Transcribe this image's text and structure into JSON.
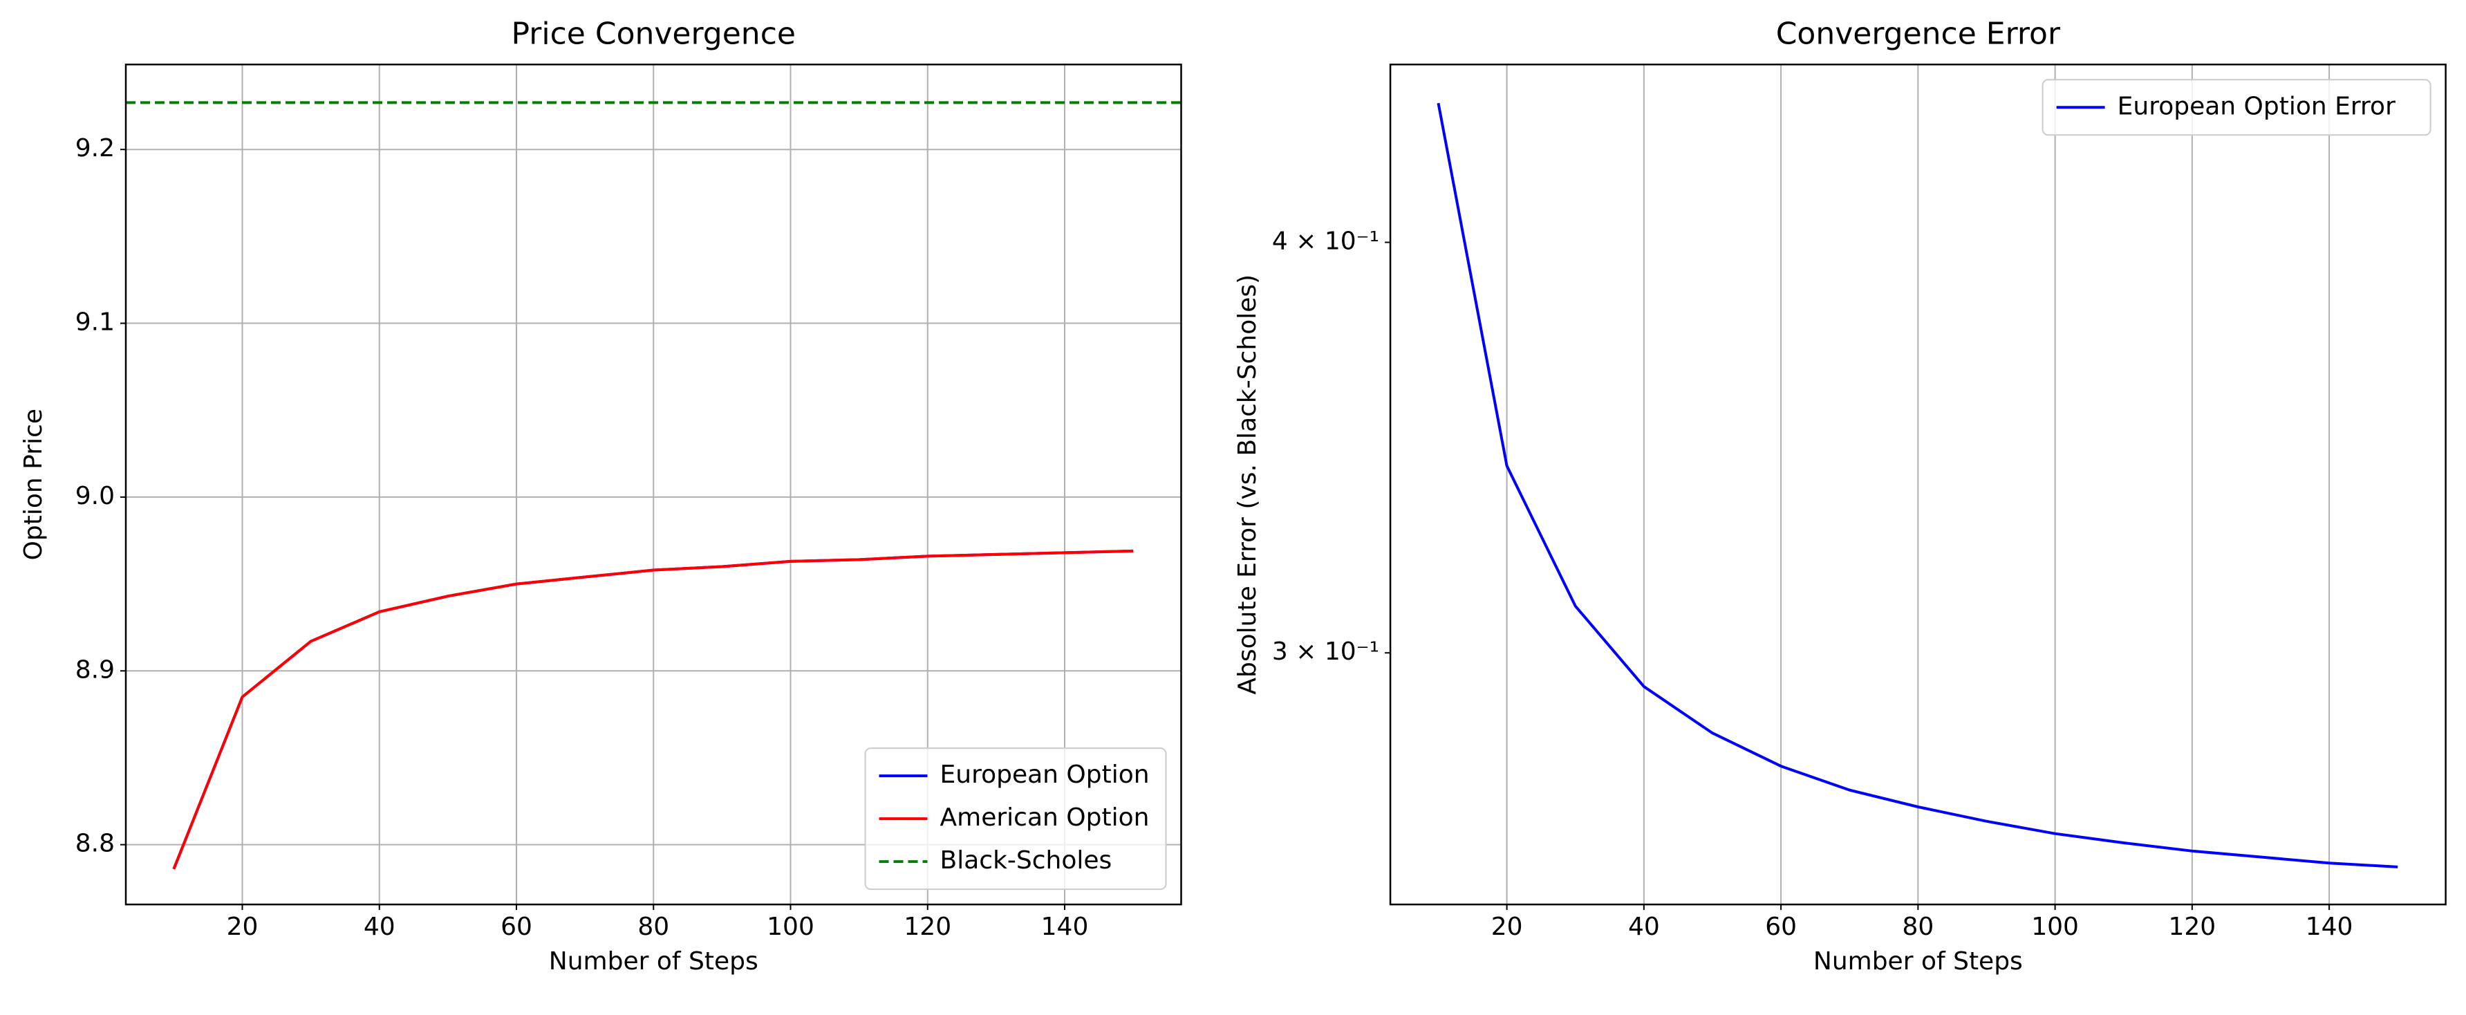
{
  "chart_data": [
    {
      "type": "line",
      "title": "Price Convergence",
      "xlabel": "Number of Steps",
      "ylabel": "Option Price",
      "x": [
        10,
        20,
        30,
        40,
        50,
        60,
        70,
        80,
        90,
        100,
        110,
        120,
        130,
        140,
        150
      ],
      "series": [
        {
          "name": "European Option",
          "color": "#0000ff",
          "values": [
            8.786,
            8.885,
            8.917,
            8.934,
            8.943,
            8.95,
            8.954,
            8.958,
            8.96,
            8.963,
            8.964,
            8.966,
            8.967,
            8.968,
            8.969
          ]
        },
        {
          "name": "American Option",
          "color": "#ff0000",
          "values": [
            8.786,
            8.885,
            8.917,
            8.934,
            8.943,
            8.95,
            8.954,
            8.958,
            8.96,
            8.963,
            8.964,
            8.966,
            8.967,
            8.968,
            8.969
          ]
        },
        {
          "name": "Black-Scholes",
          "color": "#008000",
          "linestyle": "dashed",
          "hline": 9.227
        }
      ],
      "xlim": [
        3,
        157
      ],
      "xticks": [
        20,
        40,
        60,
        80,
        100,
        120,
        140
      ],
      "ylim": [
        8.7656,
        9.2489
      ],
      "yticks": [
        8.8,
        8.9,
        {
          "value": 9.0,
          "label": "9.0"
        },
        9.1,
        9.2
      ],
      "grid": "both",
      "legend": "lower right"
    },
    {
      "type": "line",
      "title": "Convergence Error",
      "xlabel": "Number of Steps",
      "ylabel": "Absolute Error (vs. Black-Scholes)",
      "x": [
        10,
        20,
        30,
        40,
        50,
        60,
        70,
        80,
        90,
        100,
        110,
        120,
        130,
        140,
        150
      ],
      "series": [
        {
          "name": "European Option Error",
          "color": "#0000ff",
          "values": [
            0.441,
            0.342,
            0.31,
            0.293,
            0.2836,
            0.2771,
            0.2725,
            0.2693,
            0.2666,
            0.2643,
            0.2626,
            0.2611,
            0.26,
            0.2589,
            0.2582
          ]
        }
      ],
      "xlim": [
        3,
        157
      ],
      "xticks": [
        20,
        40,
        60,
        80,
        100,
        120,
        140
      ],
      "ylim": [
        0.2515,
        0.4531
      ],
      "yticks": [
        {
          "value": 0.3,
          "label": "3 × 10⁻¹"
        },
        {
          "value": 0.4,
          "label": "4 × 10⁻¹"
        }
      ],
      "yscale": "log",
      "grid": "x",
      "legend": "upper right"
    }
  ]
}
